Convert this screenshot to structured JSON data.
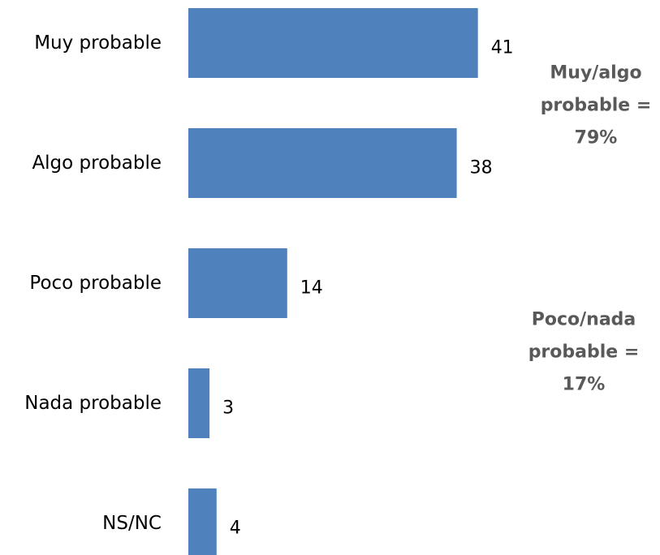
{
  "chart_data": {
    "type": "bar",
    "orientation": "horizontal",
    "categories": [
      "Muy probable",
      "Algo probable",
      "Poco probable",
      "Nada probable",
      "NS/NC"
    ],
    "values": [
      41,
      38,
      14,
      3,
      4
    ],
    "data_labels": [
      "41",
      "38",
      "14",
      "3",
      "4"
    ],
    "grid": false,
    "legend": "none",
    "bar_color": "#4F81BD",
    "annotation_color": "#595959",
    "annotations": [
      {
        "lines": [
          "Muy/algo",
          "probable =",
          "79%"
        ]
      },
      {
        "lines": [
          "Poco/nada",
          "probable =",
          "17%"
        ]
      }
    ]
  }
}
